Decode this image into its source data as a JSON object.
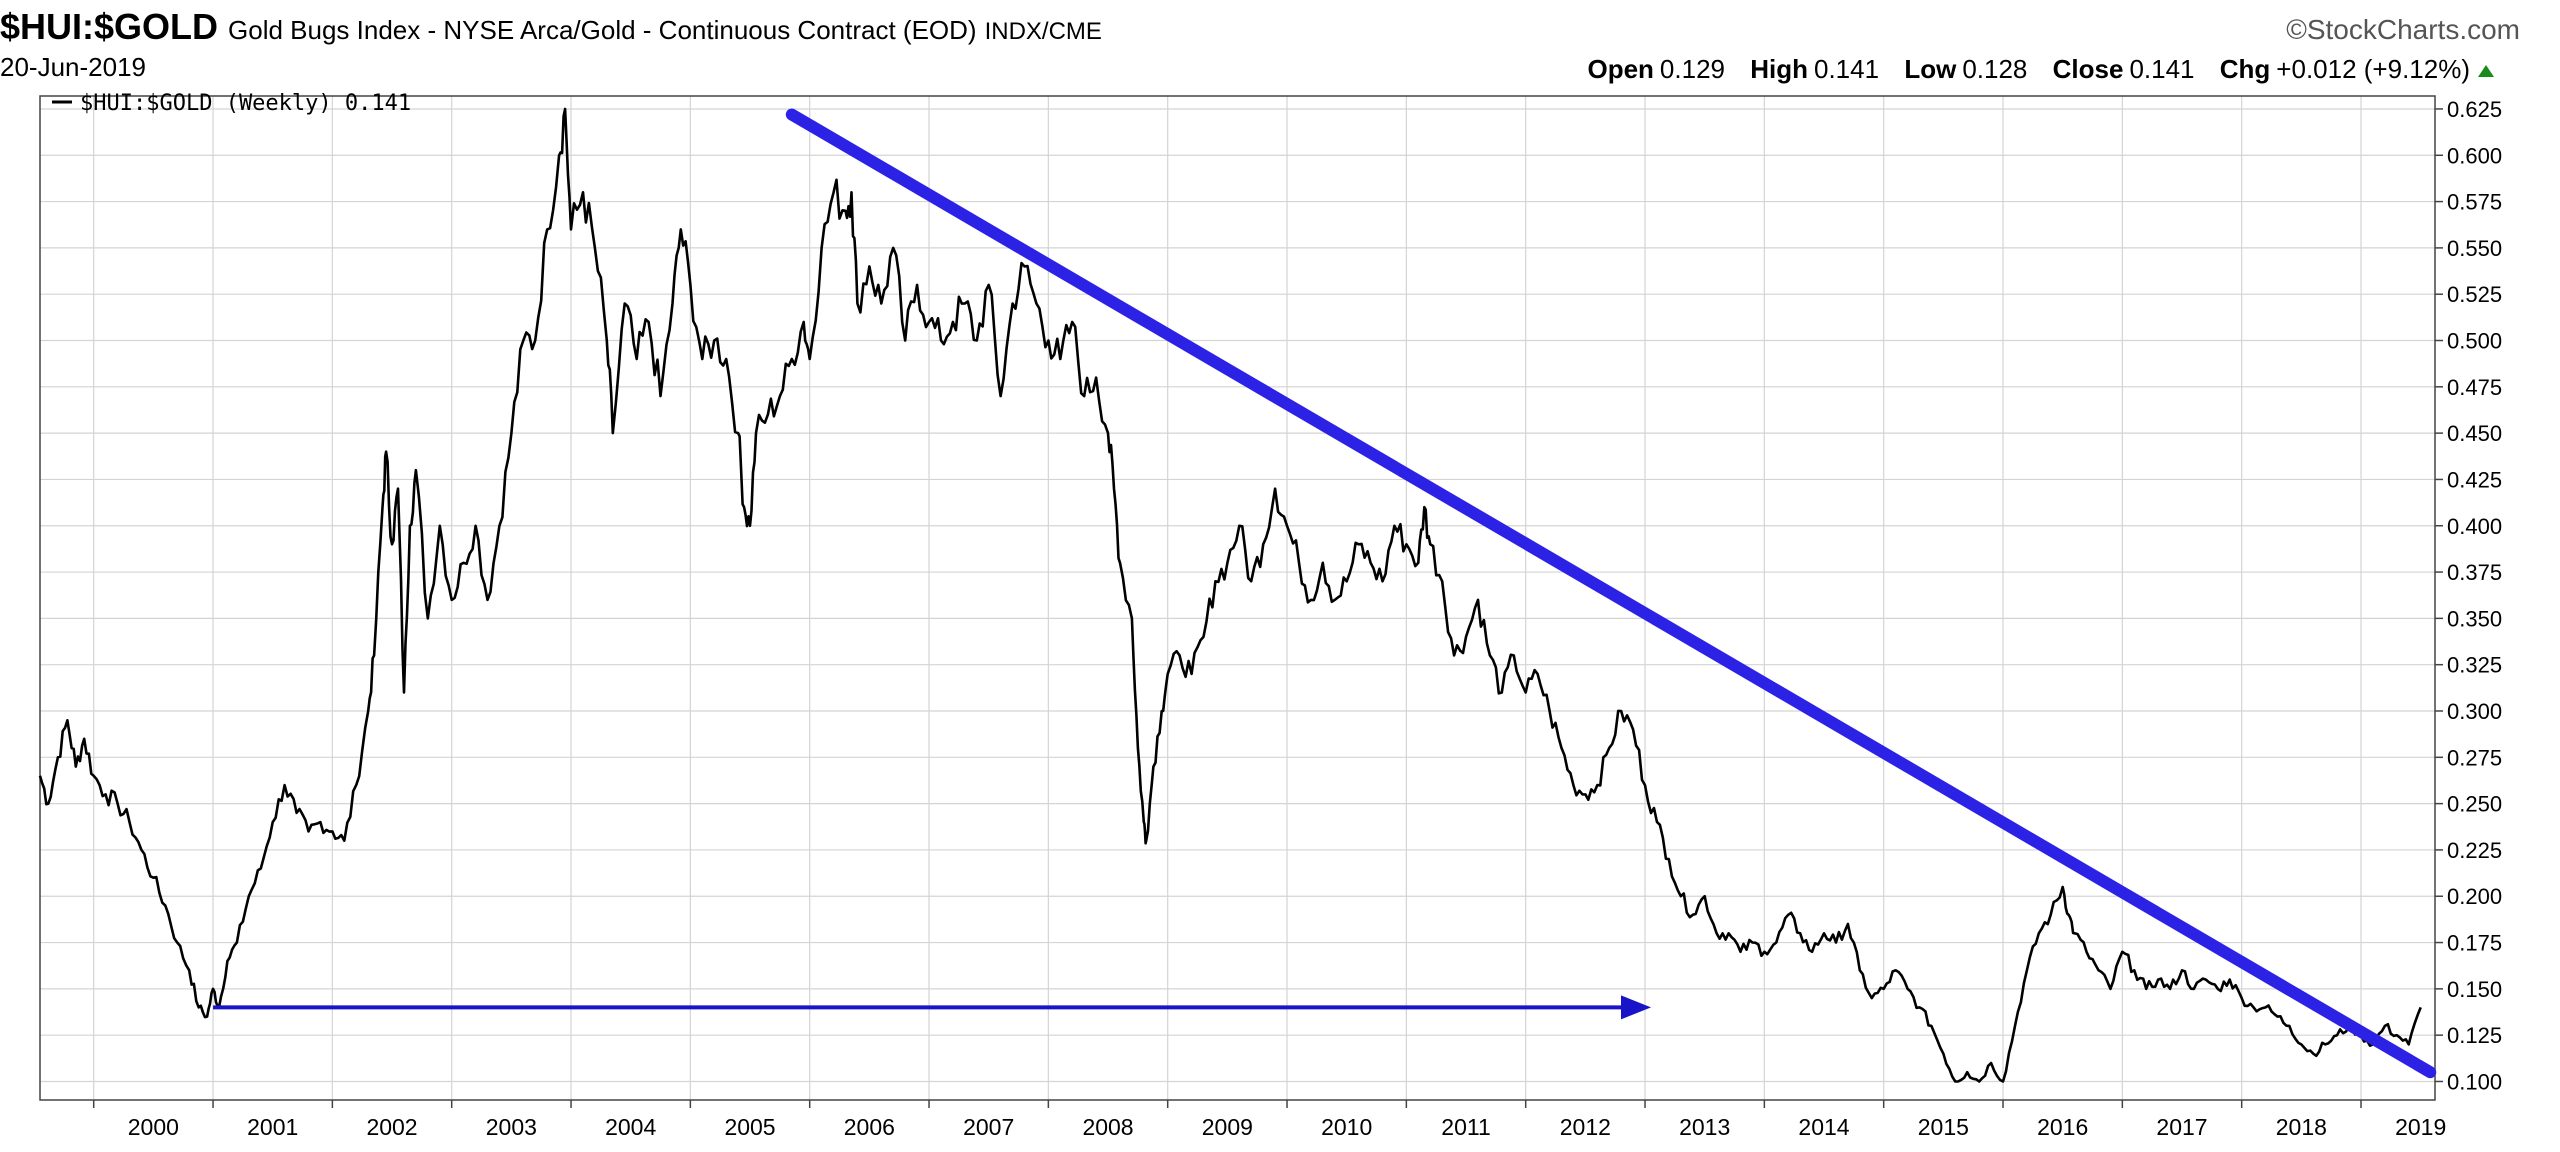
{
  "header": {
    "symbol": "$HUI:$GOLD",
    "description": "Gold Bugs Index - NYSE Arca/Gold - Continuous Contract (EOD)",
    "exchange": "INDX/CME",
    "date": "20-Jun-2019",
    "brand": "©StockCharts.com",
    "open_label": "Open",
    "open_value": "0.129",
    "high_label": "High",
    "high_value": "0.141",
    "low_label": "Low",
    "low_value": "0.128",
    "close_label": "Close",
    "close_value": "0.141",
    "chg_label": "Chg",
    "chg_value": "+0.012 (+9.12%)"
  },
  "colors": {
    "price_line": "#000000",
    "trend_line": "#2b22e6",
    "arrow": "#1a14c8",
    "grid": "#d4d4d4"
  },
  "chart_data": {
    "type": "line",
    "legend": "$HUI:$GOLD (Weekly) 0.141",
    "legend_placement": "top-left",
    "x_range": [
      1999.55,
      2019.62
    ],
    "ylim": [
      0.09,
      0.632
    ],
    "y_axis_side": "right",
    "grid": true,
    "yticks": [
      0.1,
      0.125,
      0.15,
      0.175,
      0.2,
      0.225,
      0.25,
      0.275,
      0.3,
      0.325,
      0.35,
      0.375,
      0.4,
      0.425,
      0.45,
      0.475,
      0.5,
      0.525,
      0.55,
      0.575,
      0.6,
      0.625
    ],
    "ytick_labels": [
      "0.100",
      "0.125",
      "0.150",
      "0.175",
      "0.200",
      "0.225",
      "0.250",
      "0.275",
      "0.300",
      "0.325",
      "0.350",
      "0.375",
      "0.400",
      "0.425",
      "0.450",
      "0.475",
      "0.500",
      "0.525",
      "0.550",
      "0.575",
      "0.600",
      "0.625"
    ],
    "xticks": [
      "2000",
      "2001",
      "2002",
      "2003",
      "2004",
      "2005",
      "2006",
      "2007",
      "2008",
      "2009",
      "2010",
      "2011",
      "2012",
      "2013",
      "2014",
      "2015",
      "2016",
      "2017",
      "2018",
      "2019"
    ],
    "series": [
      {
        "values": [
          [
            1999.55,
            0.265
          ],
          [
            1999.62,
            0.25
          ],
          [
            1999.7,
            0.275
          ],
          [
            1999.78,
            0.295
          ],
          [
            1999.85,
            0.27
          ],
          [
            1999.92,
            0.285
          ],
          [
            2000.0,
            0.265
          ],
          [
            2000.1,
            0.255
          ],
          [
            2000.2,
            0.25
          ],
          [
            2000.3,
            0.24
          ],
          [
            2000.4,
            0.225
          ],
          [
            2000.5,
            0.21
          ],
          [
            2000.6,
            0.195
          ],
          [
            2000.7,
            0.175
          ],
          [
            2000.8,
            0.16
          ],
          [
            2000.88,
            0.14
          ],
          [
            2000.95,
            0.135
          ],
          [
            2001.0,
            0.15
          ],
          [
            2001.05,
            0.14
          ],
          [
            2001.12,
            0.165
          ],
          [
            2001.2,
            0.175
          ],
          [
            2001.3,
            0.2
          ],
          [
            2001.4,
            0.215
          ],
          [
            2001.5,
            0.24
          ],
          [
            2001.6,
            0.26
          ],
          [
            2001.7,
            0.245
          ],
          [
            2001.8,
            0.235
          ],
          [
            2001.9,
            0.24
          ],
          [
            2002.0,
            0.235
          ],
          [
            2002.1,
            0.23
          ],
          [
            2002.2,
            0.26
          ],
          [
            2002.3,
            0.3
          ],
          [
            2002.35,
            0.33
          ],
          [
            2002.42,
            0.41
          ],
          [
            2002.45,
            0.44
          ],
          [
            2002.5,
            0.39
          ],
          [
            2002.55,
            0.42
          ],
          [
            2002.6,
            0.31
          ],
          [
            2002.65,
            0.4
          ],
          [
            2002.7,
            0.43
          ],
          [
            2002.8,
            0.35
          ],
          [
            2002.9,
            0.4
          ],
          [
            2003.0,
            0.36
          ],
          [
            2003.1,
            0.38
          ],
          [
            2003.2,
            0.4
          ],
          [
            2003.3,
            0.36
          ],
          [
            2003.4,
            0.4
          ],
          [
            2003.5,
            0.45
          ],
          [
            2003.6,
            0.5
          ],
          [
            2003.7,
            0.5
          ],
          [
            2003.8,
            0.56
          ],
          [
            2003.9,
            0.6
          ],
          [
            2003.95,
            0.625
          ],
          [
            2004.0,
            0.56
          ],
          [
            2004.1,
            0.58
          ],
          [
            2004.2,
            0.55
          ],
          [
            2004.3,
            0.5
          ],
          [
            2004.35,
            0.45
          ],
          [
            2004.45,
            0.52
          ],
          [
            2004.55,
            0.49
          ],
          [
            2004.65,
            0.51
          ],
          [
            2004.75,
            0.47
          ],
          [
            2004.85,
            0.52
          ],
          [
            2004.92,
            0.56
          ],
          [
            2005.0,
            0.53
          ],
          [
            2005.1,
            0.49
          ],
          [
            2005.2,
            0.5
          ],
          [
            2005.3,
            0.49
          ],
          [
            2005.4,
            0.45
          ],
          [
            2005.45,
            0.41
          ],
          [
            2005.5,
            0.4
          ],
          [
            2005.55,
            0.45
          ],
          [
            2005.65,
            0.46
          ],
          [
            2005.75,
            0.47
          ],
          [
            2005.85,
            0.49
          ],
          [
            2005.95,
            0.51
          ],
          [
            2006.0,
            0.49
          ],
          [
            2006.1,
            0.55
          ],
          [
            2006.2,
            0.58
          ],
          [
            2006.3,
            0.57
          ],
          [
            2006.35,
            0.58
          ],
          [
            2006.4,
            0.52
          ],
          [
            2006.5,
            0.54
          ],
          [
            2006.6,
            0.52
          ],
          [
            2006.7,
            0.55
          ],
          [
            2006.8,
            0.5
          ],
          [
            2006.9,
            0.53
          ],
          [
            2007.0,
            0.51
          ],
          [
            2007.1,
            0.5
          ],
          [
            2007.2,
            0.51
          ],
          [
            2007.3,
            0.52
          ],
          [
            2007.4,
            0.5
          ],
          [
            2007.5,
            0.53
          ],
          [
            2007.6,
            0.47
          ],
          [
            2007.7,
            0.52
          ],
          [
            2007.8,
            0.54
          ],
          [
            2007.9,
            0.52
          ],
          [
            2008.0,
            0.5
          ],
          [
            2008.1,
            0.49
          ],
          [
            2008.2,
            0.51
          ],
          [
            2008.3,
            0.47
          ],
          [
            2008.4,
            0.48
          ],
          [
            2008.5,
            0.45
          ],
          [
            2008.55,
            0.42
          ],
          [
            2008.6,
            0.38
          ],
          [
            2008.7,
            0.35
          ],
          [
            2008.75,
            0.28
          ],
          [
            2008.8,
            0.24
          ],
          [
            2008.82,
            0.23
          ],
          [
            2008.88,
            0.27
          ],
          [
            2008.95,
            0.3
          ],
          [
            2009.0,
            0.32
          ],
          [
            2009.1,
            0.33
          ],
          [
            2009.2,
            0.32
          ],
          [
            2009.3,
            0.34
          ],
          [
            2009.4,
            0.37
          ],
          [
            2009.5,
            0.38
          ],
          [
            2009.6,
            0.4
          ],
          [
            2009.7,
            0.37
          ],
          [
            2009.8,
            0.39
          ],
          [
            2009.9,
            0.42
          ],
          [
            2010.0,
            0.4
          ],
          [
            2010.1,
            0.38
          ],
          [
            2010.2,
            0.36
          ],
          [
            2010.3,
            0.38
          ],
          [
            2010.4,
            0.36
          ],
          [
            2010.5,
            0.37
          ],
          [
            2010.6,
            0.39
          ],
          [
            2010.7,
            0.38
          ],
          [
            2010.8,
            0.37
          ],
          [
            2010.9,
            0.4
          ],
          [
            2011.0,
            0.39
          ],
          [
            2011.1,
            0.38
          ],
          [
            2011.15,
            0.41
          ],
          [
            2011.2,
            0.39
          ],
          [
            2011.3,
            0.37
          ],
          [
            2011.4,
            0.33
          ],
          [
            2011.5,
            0.34
          ],
          [
            2011.6,
            0.36
          ],
          [
            2011.7,
            0.33
          ],
          [
            2011.8,
            0.31
          ],
          [
            2011.9,
            0.33
          ],
          [
            2012.0,
            0.31
          ],
          [
            2012.1,
            0.32
          ],
          [
            2012.2,
            0.3
          ],
          [
            2012.3,
            0.28
          ],
          [
            2012.4,
            0.26
          ],
          [
            2012.5,
            0.255
          ],
          [
            2012.6,
            0.26
          ],
          [
            2012.7,
            0.28
          ],
          [
            2012.8,
            0.3
          ],
          [
            2012.9,
            0.29
          ],
          [
            2013.0,
            0.26
          ],
          [
            2013.1,
            0.24
          ],
          [
            2013.2,
            0.22
          ],
          [
            2013.3,
            0.2
          ],
          [
            2013.4,
            0.19
          ],
          [
            2013.5,
            0.2
          ],
          [
            2013.6,
            0.18
          ],
          [
            2013.7,
            0.18
          ],
          [
            2013.8,
            0.17
          ],
          [
            2013.9,
            0.175
          ],
          [
            2014.0,
            0.17
          ],
          [
            2014.1,
            0.175
          ],
          [
            2014.2,
            0.19
          ],
          [
            2014.3,
            0.18
          ],
          [
            2014.4,
            0.17
          ],
          [
            2014.5,
            0.18
          ],
          [
            2014.6,
            0.175
          ],
          [
            2014.7,
            0.185
          ],
          [
            2014.8,
            0.16
          ],
          [
            2014.9,
            0.145
          ],
          [
            2015.0,
            0.15
          ],
          [
            2015.1,
            0.16
          ],
          [
            2015.2,
            0.15
          ],
          [
            2015.3,
            0.14
          ],
          [
            2015.4,
            0.13
          ],
          [
            2015.5,
            0.115
          ],
          [
            2015.6,
            0.1
          ],
          [
            2015.7,
            0.105
          ],
          [
            2015.8,
            0.1
          ],
          [
            2015.9,
            0.11
          ],
          [
            2016.0,
            0.1
          ],
          [
            2016.1,
            0.13
          ],
          [
            2016.2,
            0.16
          ],
          [
            2016.3,
            0.18
          ],
          [
            2016.4,
            0.19
          ],
          [
            2016.5,
            0.205
          ],
          [
            2016.55,
            0.19
          ],
          [
            2016.6,
            0.18
          ],
          [
            2016.7,
            0.17
          ],
          [
            2016.8,
            0.16
          ],
          [
            2016.9,
            0.15
          ],
          [
            2017.0,
            0.17
          ],
          [
            2017.1,
            0.16
          ],
          [
            2017.2,
            0.15
          ],
          [
            2017.3,
            0.155
          ],
          [
            2017.4,
            0.15
          ],
          [
            2017.5,
            0.16
          ],
          [
            2017.6,
            0.15
          ],
          [
            2017.7,
            0.155
          ],
          [
            2017.8,
            0.15
          ],
          [
            2017.9,
            0.155
          ],
          [
            2018.0,
            0.145
          ],
          [
            2018.1,
            0.14
          ],
          [
            2018.2,
            0.14
          ],
          [
            2018.3,
            0.135
          ],
          [
            2018.4,
            0.13
          ],
          [
            2018.5,
            0.12
          ],
          [
            2018.6,
            0.115
          ],
          [
            2018.7,
            0.12
          ],
          [
            2018.8,
            0.125
          ],
          [
            2018.9,
            0.13
          ],
          [
            2019.0,
            0.125
          ],
          [
            2019.1,
            0.12
          ],
          [
            2019.2,
            0.13
          ],
          [
            2019.3,
            0.125
          ],
          [
            2019.4,
            0.12
          ],
          [
            2019.5,
            0.14
          ]
        ]
      }
    ],
    "annotations": {
      "trend_line": {
        "from": [
          2005.85,
          0.622
        ],
        "to": [
          2019.58,
          0.105
        ]
      },
      "horizontal_arrow": {
        "from": [
          2001.0,
          0.14
        ],
        "to": [
          2013.05,
          0.14
        ]
      }
    }
  }
}
